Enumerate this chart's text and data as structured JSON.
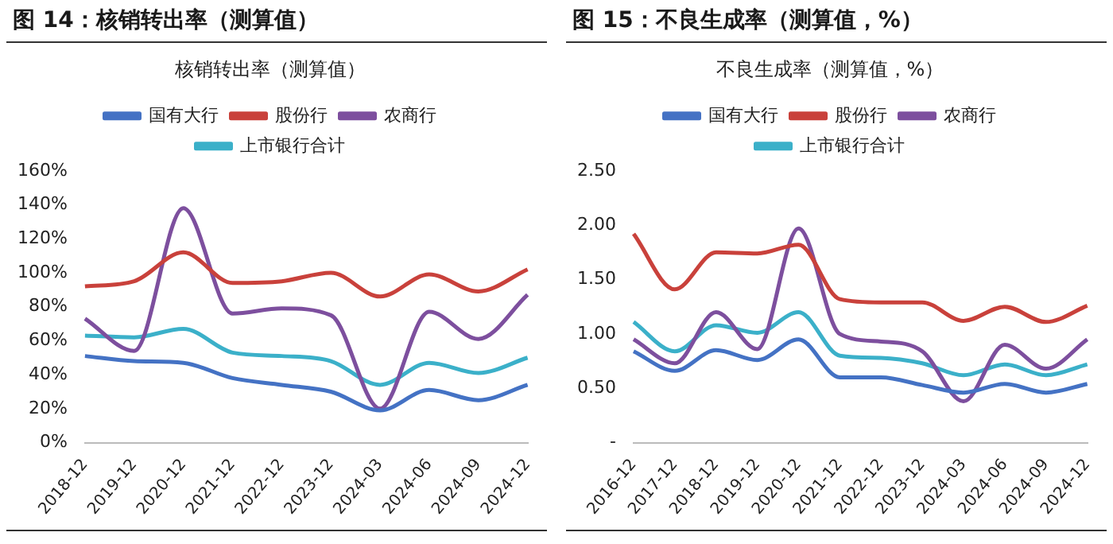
{
  "chart_data": [
    {
      "type": "line",
      "title": "图 14：核销转出率（测算值）",
      "subtitle": "核销转出率（测算值）",
      "categories": [
        "2018-12",
        "2019-12",
        "2020-12",
        "2021-12",
        "2022-12",
        "2023-12",
        "2024-03",
        "2024-06",
        "2024-09",
        "2024-12"
      ],
      "series": [
        {
          "name": "国有大行",
          "color": "#4472c4",
          "values": [
            51,
            48,
            47,
            38,
            34,
            30,
            19,
            31,
            25,
            34
          ]
        },
        {
          "name": "股份行",
          "color": "#c9413b",
          "values": [
            92,
            95,
            112,
            94,
            95,
            100,
            86,
            99,
            89,
            102
          ]
        },
        {
          "name": "农商行",
          "color": "#7d4f9e",
          "values": [
            73,
            54,
            138,
            76,
            79,
            75,
            20,
            77,
            61,
            87
          ]
        },
        {
          "name": "上市银行合计",
          "color": "#3bb0c9",
          "values": [
            63,
            62,
            67,
            53,
            51,
            48,
            34,
            47,
            41,
            50
          ]
        }
      ],
      "ylim": [
        0,
        160
      ],
      "yticks": [
        {
          "value": 0,
          "label": "0%"
        },
        {
          "value": 20,
          "label": "20%"
        },
        {
          "value": 40,
          "label": "40%"
        },
        {
          "value": 60,
          "label": "60%"
        },
        {
          "value": 80,
          "label": "80%"
        },
        {
          "value": 100,
          "label": "100%"
        },
        {
          "value": 120,
          "label": "120%"
        },
        {
          "value": 140,
          "label": "140%"
        },
        {
          "value": 160,
          "label": "160%"
        }
      ],
      "grid": false,
      "legend": "top",
      "marker": "none",
      "line_style": "solid"
    },
    {
      "type": "line",
      "title": "图 15：不良生成率（测算值，%）",
      "subtitle": "不良生成率（测算值，%）",
      "categories": [
        "2016-12",
        "2017-12",
        "2018-12",
        "2019-12",
        "2020-12",
        "2021-12",
        "2022-12",
        "2023-12",
        "2024-03",
        "2024-06",
        "2024-09",
        "2024-12"
      ],
      "series": [
        {
          "name": "国有大行",
          "color": "#4472c4",
          "values": [
            0.84,
            0.66,
            0.85,
            0.76,
            0.95,
            0.6,
            0.6,
            0.53,
            0.46,
            0.54,
            0.46,
            0.54
          ]
        },
        {
          "name": "股份行",
          "color": "#c9413b",
          "values": [
            1.92,
            1.41,
            1.75,
            1.74,
            1.82,
            1.32,
            1.29,
            1.29,
            1.12,
            1.25,
            1.11,
            1.26
          ]
        },
        {
          "name": "农商行",
          "color": "#7d4f9e",
          "values": [
            0.95,
            0.73,
            1.2,
            0.86,
            1.97,
            1.0,
            0.93,
            0.84,
            0.38,
            0.9,
            0.68,
            0.95
          ]
        },
        {
          "name": "上市银行合计",
          "color": "#3bb0c9",
          "values": [
            1.11,
            0.84,
            1.08,
            1.01,
            1.2,
            0.8,
            0.78,
            0.73,
            0.62,
            0.72,
            0.62,
            0.72
          ]
        }
      ],
      "ylim": [
        0,
        2.5
      ],
      "yticks": [
        {
          "value": 0,
          "label": "-"
        },
        {
          "value": 0.5,
          "label": "0.50"
        },
        {
          "value": 1,
          "label": "1.00"
        },
        {
          "value": 1.5,
          "label": "1.50"
        },
        {
          "value": 2,
          "label": "2.00"
        },
        {
          "value": 2.5,
          "label": "2.50"
        }
      ],
      "grid": false,
      "legend": "top",
      "marker": "none",
      "line_style": "solid"
    }
  ]
}
